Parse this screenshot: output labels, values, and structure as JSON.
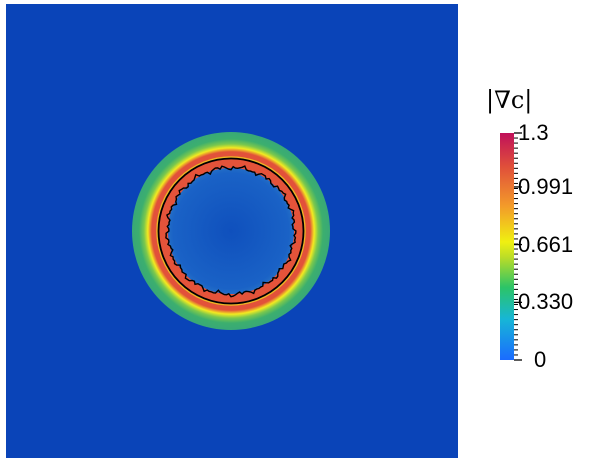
{
  "colorbar": {
    "title_math": "|∇c|",
    "ticks": [
      {
        "label": "1.3",
        "value": 1.3
      },
      {
        "label": "0.991",
        "value": 0.991
      },
      {
        "label": "0.661",
        "value": 0.661
      },
      {
        "label": "0.330",
        "value": 0.33
      },
      {
        "label": "0",
        "value": 0
      }
    ],
    "range": [
      0,
      1.3
    ],
    "colormap": [
      "#1a6bff",
      "#17b6d6",
      "#2cc467",
      "#b9dc28",
      "#f0f011",
      "#f39a2a",
      "#e0503a",
      "#c0105a"
    ]
  },
  "field": {
    "background_color": "#0a44b8",
    "outer_halo_color": "#3aae6f",
    "ring_color": "#e4533a",
    "inner_color": "#1256c0",
    "contour_color": "#000000"
  }
}
